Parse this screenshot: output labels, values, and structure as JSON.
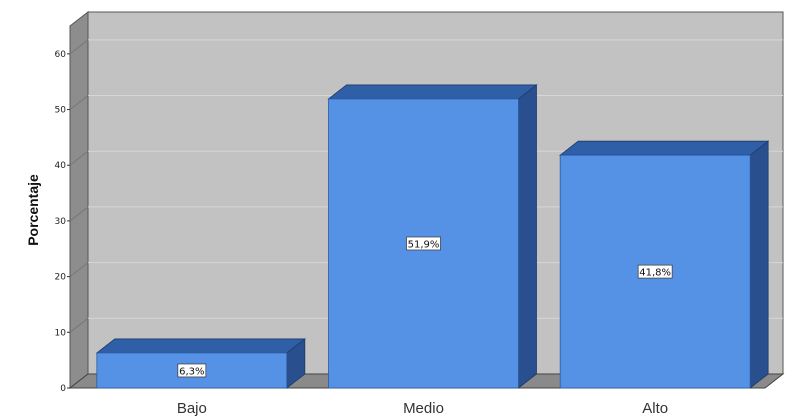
{
  "chart_data": {
    "type": "bar",
    "categories": [
      "Bajo",
      "Medio",
      "Alto"
    ],
    "values": [
      6.3,
      51.9,
      41.8
    ],
    "data_labels": [
      "6,3%",
      "51,9%",
      "41,8%"
    ],
    "ylabel": "Porcentaje",
    "xlabel": "",
    "ylim": [
      0,
      65
    ],
    "yticks": [
      0,
      10,
      20,
      30,
      40,
      50,
      60
    ],
    "grid": true,
    "three_d": true
  },
  "colors": {
    "bar_front": "#5592e6",
    "bar_top": "#2f5fa6",
    "bar_side": "#2a4f8f",
    "wall": "#c2c2c2",
    "wall_side": "#8d8d8d",
    "floor": "#8a8a8a",
    "gridline": "#d6d6d6"
  }
}
